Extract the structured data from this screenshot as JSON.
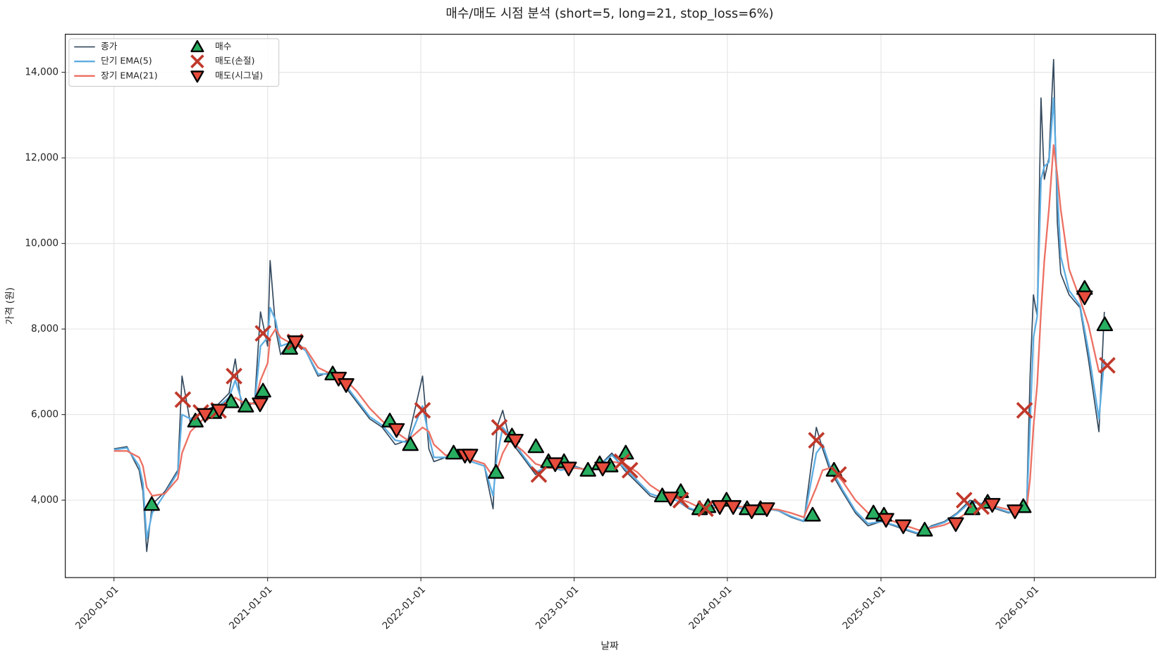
{
  "chart_data": {
    "type": "line",
    "title": "매수/매도 시점 분석 (short=5, long=21, stop_loss=6%)",
    "xlabel": "날짜",
    "ylabel": "가격 (원)",
    "x": [
      "2020-01-01",
      "2020-02-01",
      "2020-03-01",
      "2020-03-10",
      "2020-03-19",
      "2020-04-01",
      "2020-05-01",
      "2020-06-01",
      "2020-06-11",
      "2020-07-01",
      "2020-08-01",
      "2020-09-01",
      "2020-10-01",
      "2020-10-16",
      "2020-11-01",
      "2020-12-01",
      "2020-12-15",
      "2021-01-01",
      "2021-01-07",
      "2021-01-20",
      "2021-02-01",
      "2021-03-01",
      "2021-04-01",
      "2021-05-01",
      "2021-06-01",
      "2021-07-01",
      "2021-08-01",
      "2021-09-01",
      "2021-10-01",
      "2021-11-01",
      "2021-12-01",
      "2022-01-05",
      "2022-01-20",
      "2022-02-01",
      "2022-03-01",
      "2022-04-01",
      "2022-05-01",
      "2022-06-01",
      "2022-06-22",
      "2022-07-01",
      "2022-07-15",
      "2022-08-01",
      "2022-09-01",
      "2022-10-01",
      "2022-11-01",
      "2022-12-01",
      "2023-01-01",
      "2023-02-01",
      "2023-03-01",
      "2023-04-01",
      "2023-05-01",
      "2023-06-01",
      "2023-07-01",
      "2023-08-01",
      "2023-09-01",
      "2023-10-01",
      "2023-11-01",
      "2023-12-01",
      "2024-01-01",
      "2024-02-01",
      "2024-03-01",
      "2024-04-01",
      "2024-05-01",
      "2024-06-01",
      "2024-07-01",
      "2024-07-31",
      "2024-08-15",
      "2024-09-01",
      "2024-10-01",
      "2024-11-01",
      "2024-12-01",
      "2025-01-01",
      "2025-02-01",
      "2025-03-01",
      "2025-04-01",
      "2025-05-01",
      "2025-06-01",
      "2025-07-01",
      "2025-08-01",
      "2025-09-01",
      "2025-10-01",
      "2025-11-01",
      "2025-12-01",
      "2025-12-14",
      "2025-12-22",
      "2025-12-30",
      "2026-01-08",
      "2026-01-17",
      "2026-01-25",
      "2026-02-05",
      "2026-02-16",
      "2026-02-25",
      "2026-03-05",
      "2026-03-25",
      "2026-04-20",
      "2026-05-10",
      "2026-06-04",
      "2026-06-17"
    ],
    "series": [
      {
        "name": "종가",
        "color": "#34495e",
        "width": 1.6,
        "values": [
          5200,
          5250,
          4700,
          4200,
          2800,
          3900,
          4200,
          4700,
          6900,
          5800,
          6100,
          6200,
          6500,
          7300,
          6100,
          6300,
          8400,
          7600,
          9600,
          8000,
          7400,
          7800,
          7500,
          6900,
          7000,
          6700,
          6300,
          5900,
          5700,
          5300,
          5400,
          6900,
          5200,
          4900,
          5000,
          5100,
          4900,
          4800,
          3800,
          5700,
          6100,
          5400,
          5000,
          4600,
          4800,
          4700,
          4800,
          4700,
          4800,
          5100,
          4700,
          4400,
          4100,
          4000,
          4000,
          3800,
          3700,
          3900,
          3900,
          3800,
          3800,
          3800,
          3750,
          3600,
          3500,
          5700,
          5200,
          4700,
          4200,
          3700,
          3400,
          3500,
          3400,
          3300,
          3200,
          3400,
          3500,
          3700,
          4000,
          3900,
          3800,
          3700,
          3800,
          3900,
          6900,
          8800,
          8300,
          13400,
          11500,
          12000,
          14300,
          10500,
          9300,
          8800,
          8500,
          7300,
          5600,
          8400
        ]
      },
      {
        "name": "단기 EMA(5)",
        "color": "#5dade2",
        "width": 2.2,
        "values": [
          5180,
          5220,
          4800,
          4400,
          3100,
          3700,
          4150,
          4650,
          6000,
          5900,
          6050,
          6150,
          6400,
          6800,
          6300,
          6250,
          7600,
          7800,
          8500,
          8200,
          7600,
          7700,
          7500,
          6950,
          6950,
          6750,
          6350,
          5950,
          5750,
          5400,
          5350,
          6200,
          5500,
          5000,
          5000,
          5100,
          4900,
          4800,
          4100,
          5000,
          5700,
          5500,
          5050,
          4650,
          4800,
          4700,
          4780,
          4700,
          4800,
          5050,
          4750,
          4450,
          4150,
          4050,
          4000,
          3820,
          3720,
          3880,
          3900,
          3810,
          3800,
          3800,
          3760,
          3620,
          3510,
          5100,
          5300,
          4800,
          4250,
          3750,
          3450,
          3500,
          3420,
          3320,
          3220,
          3380,
          3480,
          3680,
          3950,
          3920,
          3820,
          3720,
          3780,
          3850,
          5800,
          7800,
          8300,
          11500,
          11800,
          11900,
          13400,
          11200,
          9700,
          8900,
          8550,
          7500,
          5900,
          7300
        ]
      },
      {
        "name": "장기 EMA(21)",
        "color": "#ec7063",
        "width": 2.2,
        "values": [
          5150,
          5150,
          5000,
          4800,
          4300,
          4100,
          4150,
          4500,
          5100,
          5600,
          5900,
          6050,
          6200,
          6400,
          6300,
          6250,
          6800,
          7200,
          7800,
          8000,
          7800,
          7650,
          7550,
          7100,
          6950,
          6850,
          6550,
          6150,
          5850,
          5600,
          5400,
          5700,
          5600,
          5300,
          5050,
          5050,
          4950,
          4850,
          4550,
          4700,
          5100,
          5400,
          5150,
          4850,
          4750,
          4750,
          4750,
          4720,
          4750,
          4900,
          4850,
          4650,
          4350,
          4150,
          4050,
          3950,
          3800,
          3820,
          3870,
          3850,
          3820,
          3800,
          3780,
          3700,
          3600,
          4300,
          4700,
          4750,
          4450,
          4000,
          3700,
          3600,
          3500,
          3400,
          3300,
          3350,
          3420,
          3550,
          3750,
          3850,
          3850,
          3780,
          3760,
          3800,
          4500,
          5700,
          6700,
          8400,
          9600,
          10800,
          12300,
          11600,
          10800,
          9400,
          8700,
          8100,
          7000,
          7100
        ]
      },
      {
        "name": "매수",
        "color": "#27ae60",
        "marker": "^",
        "x": [
          "2020-03-31",
          "2020-07-13",
          "2020-08-26",
          "2020-10-06",
          "2020-11-10",
          "2020-12-21",
          "2021-02-23",
          "2021-06-05",
          "2021-10-19",
          "2021-12-07",
          "2022-03-20",
          "2022-06-29",
          "2022-08-06",
          "2022-10-02",
          "2022-11-01",
          "2022-12-08",
          "2023-02-03",
          "2023-03-03",
          "2023-03-28",
          "2023-05-04",
          "2023-07-30",
          "2023-09-12",
          "2023-10-27",
          "2023-11-16",
          "2023-12-30",
          "2024-02-17",
          "2024-03-20",
          "2024-07-22",
          "2024-09-11",
          "2024-12-14",
          "2025-01-08",
          "2025-04-15",
          "2025-08-06",
          "2025-09-12",
          "2025-12-06",
          "2026-05-01",
          "2026-06-18"
        ],
        "values": [
          3900,
          5850,
          6050,
          6300,
          6200,
          6550,
          7550,
          6950,
          5850,
          5300,
          5100,
          4650,
          5500,
          5250,
          4900,
          4900,
          4700,
          4850,
          4800,
          5100,
          4100,
          4200,
          3800,
          3850,
          4000,
          3800,
          3800,
          3650,
          4700,
          3700,
          3650,
          3300,
          3800,
          3950,
          3850,
          8950,
          8100
        ]
      },
      {
        "name": "매도(손절)",
        "color": "#c0392b",
        "marker": "x",
        "x": [
          "2020-06-13",
          "2020-07-26",
          "2020-09-06",
          "2020-10-13",
          "2020-12-21",
          "2021-03-07",
          "2022-01-05",
          "2022-07-07",
          "2022-10-09",
          "2023-04-25",
          "2023-05-14",
          "2023-09-12",
          "2023-11-10",
          "2024-07-31",
          "2024-09-22",
          "2025-07-18",
          "2025-08-28",
          "2025-12-09",
          "2026-06-24"
        ],
        "values": [
          6350,
          6050,
          6100,
          6900,
          7900,
          7700,
          6100,
          5700,
          4600,
          4900,
          4700,
          4000,
          3800,
          5400,
          4600,
          4000,
          3850,
          6100,
          7150
        ]
      },
      {
        "name": "매도(시그널)",
        "color": "#e74c3c",
        "marker": "v",
        "x": [
          "2020-08-05",
          "2020-09-08",
          "2020-12-14",
          "2021-03-08",
          "2021-06-19",
          "2021-07-07",
          "2021-11-04",
          "2022-04-16",
          "2022-04-28",
          "2022-08-14",
          "2022-11-17",
          "2022-12-19",
          "2023-03-10",
          "2023-08-19",
          "2023-12-14",
          "2024-01-15",
          "2024-02-28",
          "2024-04-04",
          "2025-01-13",
          "2025-02-23",
          "2025-06-28",
          "2025-09-23",
          "2025-11-16",
          "2026-05-01"
        ],
        "values": [
          6000,
          6100,
          6250,
          7700,
          6850,
          6700,
          5650,
          5050,
          5050,
          5400,
          4850,
          4750,
          4750,
          4050,
          3850,
          3850,
          3750,
          3800,
          3550,
          3400,
          3450,
          3900,
          3750,
          8750
        ]
      }
    ],
    "xlim": [
      "2019-09-07",
      "2026-10-17"
    ],
    "xticks": [
      "2020-01-01",
      "2021-01-01",
      "2022-01-01",
      "2023-01-01",
      "2024-01-01",
      "2025-01-01",
      "2026-01-01"
    ],
    "ylim": [
      2190,
      14890
    ],
    "yticks": [
      {
        "value": 4000,
        "label": "4,000"
      },
      {
        "value": 6000,
        "label": "6,000"
      },
      {
        "value": 8000,
        "label": "8,000"
      },
      {
        "value": 10000,
        "label": "10,000"
      },
      {
        "value": 12000,
        "label": "12,000"
      },
      {
        "value": 14000,
        "label": "14,000"
      }
    ],
    "grid": true,
    "legend": "upper left"
  }
}
